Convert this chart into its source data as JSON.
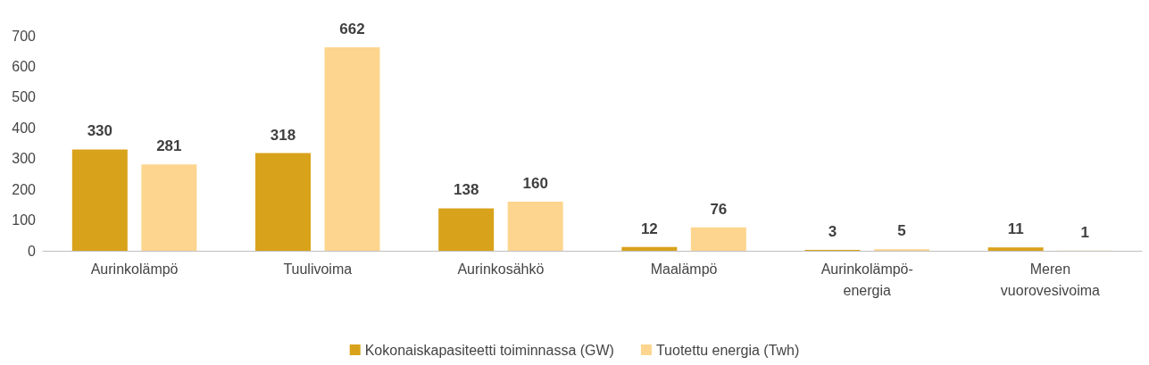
{
  "chart_data": {
    "type": "bar",
    "categories": [
      "Aurinkolämpö",
      "Tuulivoima",
      "Aurinkosähkö",
      "Maalämpö",
      "Aurinkolämpö-energia",
      "Meren vuorovesivoima"
    ],
    "series": [
      {
        "name": "Kokonaiskapasiteetti toiminnassa (GW)",
        "color": "#d9a21b",
        "values": [
          330,
          318,
          138,
          12,
          3,
          11
        ]
      },
      {
        "name": "Tuotettu energia (Twh)",
        "color": "#fdd58e",
        "values": [
          281,
          662,
          160,
          76,
          5,
          1
        ]
      }
    ],
    "ylim": [
      0,
      700
    ],
    "yticks": [
      0,
      100,
      200,
      300,
      400,
      500,
      600,
      700
    ],
    "grid": false,
    "legend": "bottom",
    "data_labels": true
  }
}
